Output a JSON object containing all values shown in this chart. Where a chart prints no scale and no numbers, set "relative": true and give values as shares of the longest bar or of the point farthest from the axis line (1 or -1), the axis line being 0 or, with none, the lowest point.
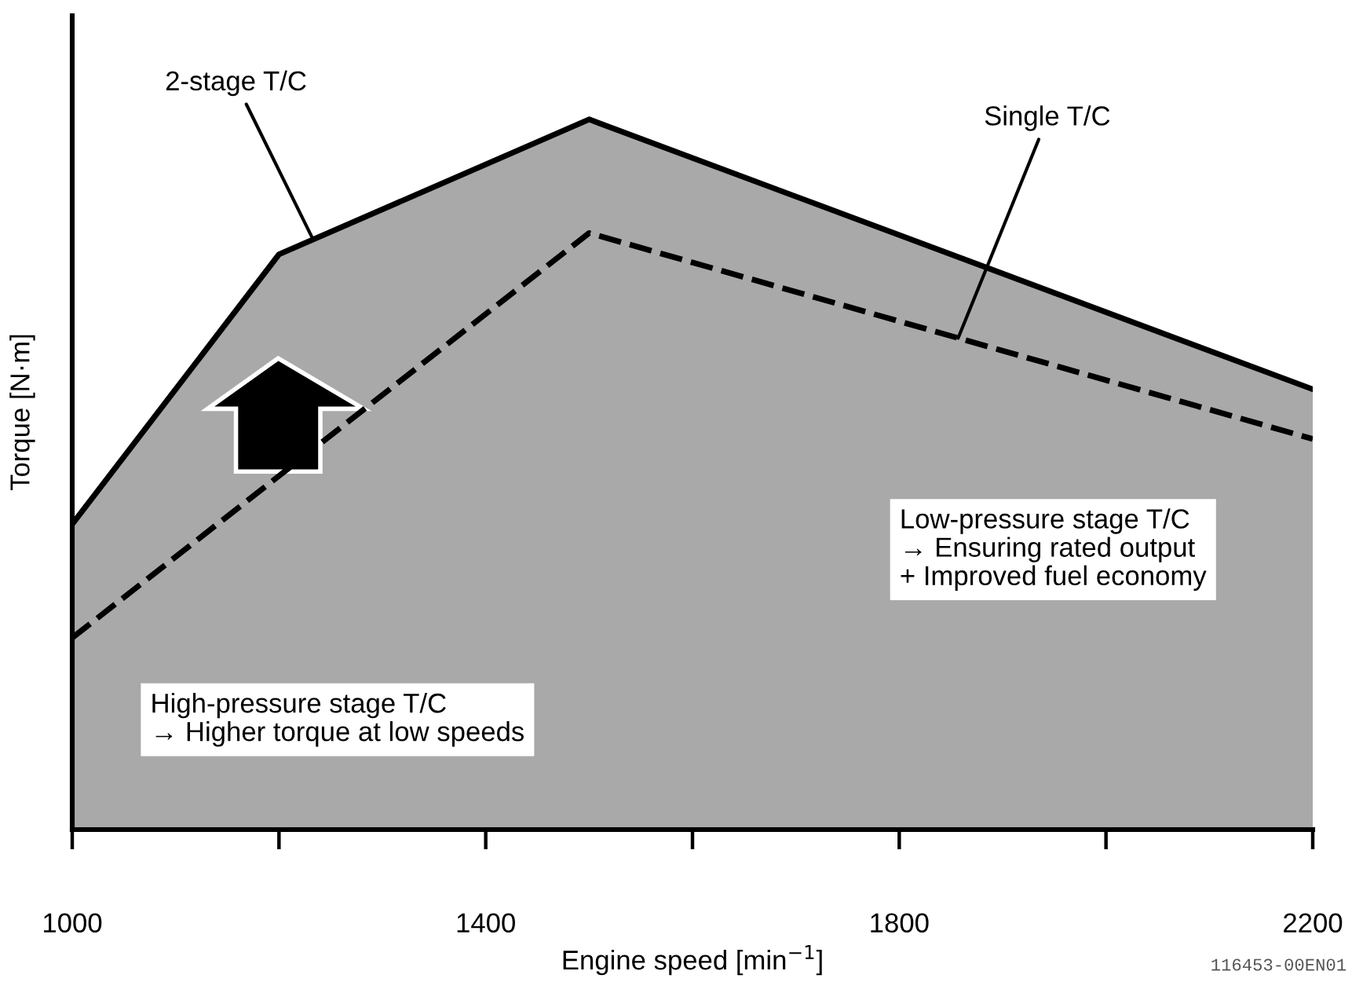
{
  "chart_data": {
    "type": "area",
    "xlabel": "Engine speed [min$^{−1}$]",
    "ylabel": "Torque [N·m]",
    "relative": true,
    "xlim": [
      1000,
      2200
    ],
    "xticks": [
      1000,
      {
        "value": 1200,
        "label": null
      },
      1400,
      {
        "value": 1600,
        "label": null
      },
      1800,
      {
        "value": 2000,
        "label": null
      },
      2200
    ],
    "series": [
      {
        "name": "2-stage T/C",
        "color": "#a9a9a9",
        "x": [
          1000,
          1200,
          1500,
          2200
        ],
        "values": [
          0.43,
          0.81,
          1,
          0.62
        ]
      },
      {
        "name": "Single T/C",
        "type": "line",
        "line_style": "dashed",
        "color": "#000000",
        "x": [
          1000,
          1500,
          2200
        ],
        "values": [
          0.27,
          0.84,
          0.55
        ]
      }
    ],
    "annotations": [
      "High-pressure stage T/C\n→ Higher torque at low speeds",
      "Low-pressure stage T/C\n→ Ensuring rated output\n+ Improved fuel economy",
      "116453-00EN01"
    ],
    "grid": false,
    "legend": false
  }
}
